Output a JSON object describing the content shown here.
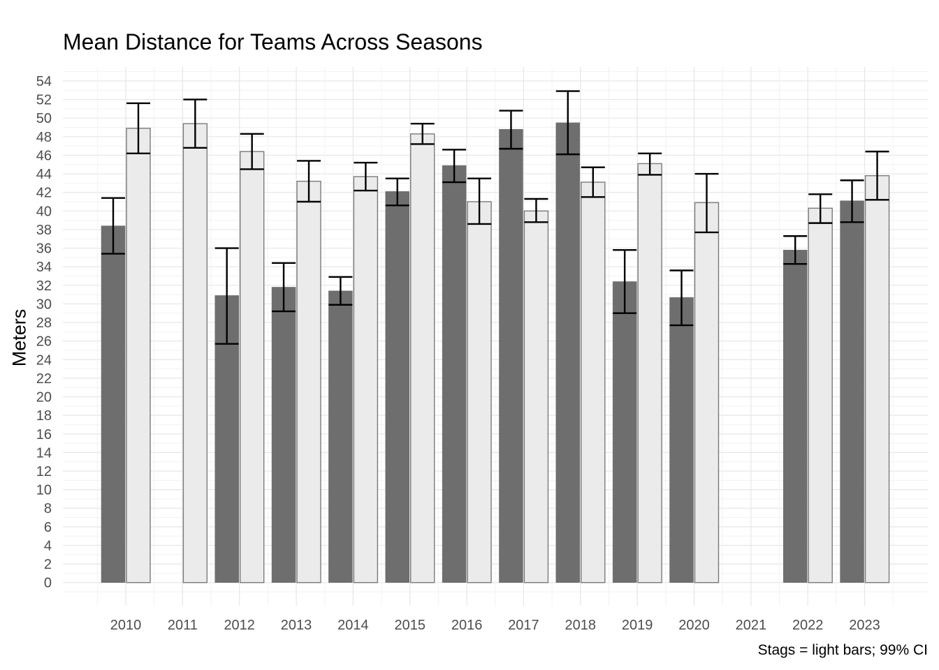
{
  "chart_data": {
    "type": "bar",
    "title": "Mean Distance for Teams Across Seasons",
    "xlabel": "",
    "ylabel": "Meters",
    "caption": "Stags = light bars; 99% CI",
    "categories": [
      "2010",
      "2011",
      "2012",
      "2013",
      "2014",
      "2015",
      "2016",
      "2017",
      "2018",
      "2019",
      "2020",
      "2021",
      "2022",
      "2023"
    ],
    "ylim": [
      -2.5,
      55.5
    ],
    "yticks": [
      0,
      2,
      4,
      6,
      8,
      10,
      12,
      14,
      16,
      18,
      20,
      22,
      24,
      26,
      28,
      30,
      32,
      34,
      36,
      38,
      40,
      42,
      44,
      46,
      48,
      50,
      52,
      54
    ],
    "grid": true,
    "series": [
      {
        "fill": "#6e6e6e",
        "values": [
          38.4,
          null,
          30.9,
          31.8,
          31.4,
          42.1,
          44.9,
          48.8,
          49.5,
          32.4,
          30.7,
          null,
          35.8,
          41.1
        ],
        "ci_lower": [
          35.4,
          null,
          25.7,
          29.2,
          29.9,
          40.6,
          43.1,
          46.7,
          46.1,
          29.0,
          27.7,
          null,
          34.3,
          38.8
        ],
        "ci_upper": [
          41.4,
          null,
          36.0,
          34.4,
          32.9,
          43.5,
          46.6,
          50.8,
          52.9,
          35.8,
          33.6,
          null,
          37.3,
          43.3
        ]
      },
      {
        "fill": "#ebebeb",
        "values": [
          48.9,
          49.4,
          46.4,
          43.2,
          43.7,
          48.3,
          41.0,
          40.0,
          43.1,
          45.1,
          40.9,
          null,
          40.3,
          43.8
        ],
        "ci_lower": [
          46.2,
          46.8,
          44.5,
          41.0,
          42.2,
          47.2,
          38.6,
          38.8,
          41.5,
          43.9,
          37.7,
          null,
          38.7,
          41.2
        ],
        "ci_upper": [
          51.6,
          52.0,
          48.3,
          45.4,
          45.2,
          49.4,
          43.5,
          41.3,
          44.7,
          46.2,
          44.0,
          null,
          41.8,
          46.4
        ]
      }
    ]
  }
}
